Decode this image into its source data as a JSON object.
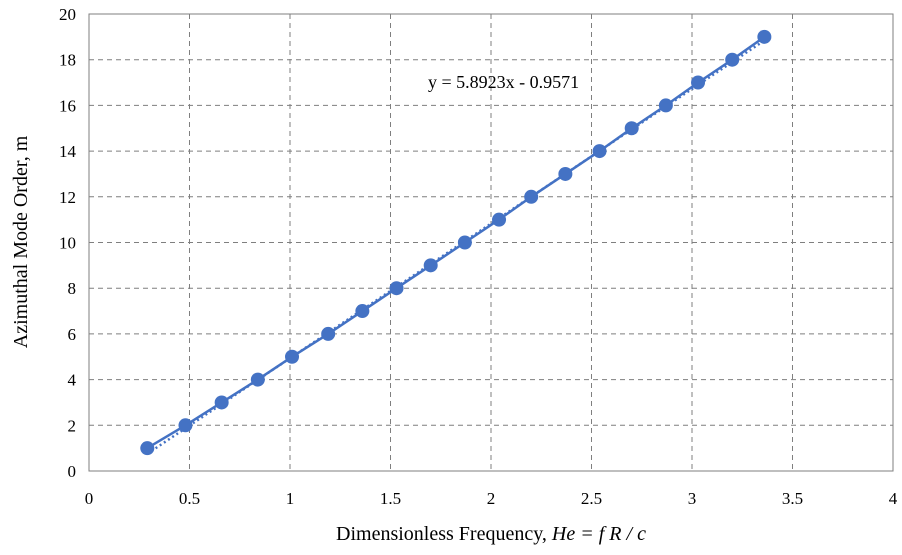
{
  "chart_data": {
    "type": "scatter",
    "xlabel_prefix": "Dimensionless Frequency, ",
    "xlabel_italic": "He",
    "xlabel_suffix": " = f R / c",
    "ylabel": "Azimuthal Mode Order, m",
    "xlim": [
      0,
      4
    ],
    "ylim": [
      0,
      20
    ],
    "x_ticks": [
      "0",
      "0.5",
      "1",
      "1.5",
      "2",
      "2.5",
      "3",
      "3.5",
      "4"
    ],
    "y_ticks": [
      "0",
      "2",
      "4",
      "6",
      "8",
      "10",
      "12",
      "14",
      "16",
      "18",
      "20"
    ],
    "grid": true,
    "series": [
      {
        "x": [
          0.29,
          0.48,
          0.66,
          0.84,
          1.01,
          1.19,
          1.36,
          1.53,
          1.7,
          1.87,
          2.04,
          2.2,
          2.37,
          2.54,
          2.7,
          2.87,
          3.03,
          3.2,
          3.36
        ],
        "y": [
          1,
          2,
          3,
          4,
          5,
          6,
          7,
          8,
          9,
          10,
          11,
          12,
          13,
          14,
          15,
          16,
          17,
          18,
          19
        ]
      }
    ],
    "trendline": {
      "slope": 5.8923,
      "intercept": -0.9571,
      "equation": "y = 5.8923x - 0.9571"
    },
    "colors": {
      "series": "#4472c4",
      "grid": "#7f7f7f"
    }
  }
}
